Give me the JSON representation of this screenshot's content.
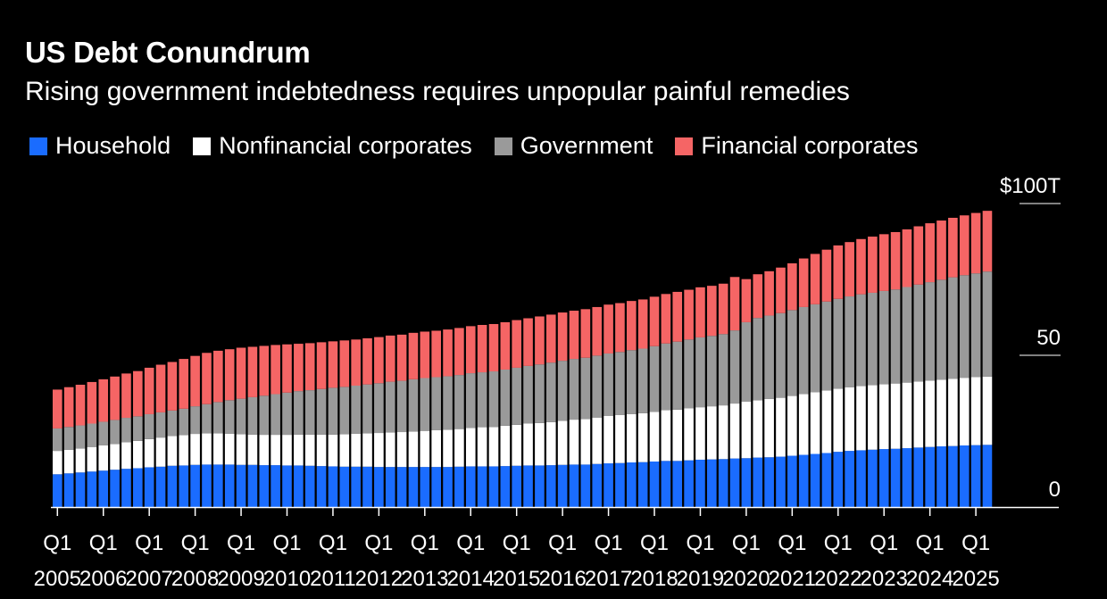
{
  "colors": {
    "household": "#1a6cff",
    "nonfinancial": "#ffffff",
    "government": "#9a9a9a",
    "financial": "#f56565",
    "background": "#000000"
  },
  "chart_data": {
    "type": "bar",
    "stacked": true,
    "title": "US Debt Conundrum",
    "subtitle": "Rising government indebtedness requires unpopular painful remedies",
    "legend_position": "top-left",
    "y_axis_position": "right",
    "ylim": [
      0,
      100
    ],
    "yticks": [
      {
        "value": 0,
        "label": "0"
      },
      {
        "value": 50,
        "label": "50"
      },
      {
        "value": 100,
        "label": "$100T"
      }
    ],
    "xtick_labels": [
      {
        "index": 0,
        "quarter": "Q1",
        "year": "2005"
      },
      {
        "index": 4,
        "quarter": "Q1",
        "year": "2006"
      },
      {
        "index": 8,
        "quarter": "Q1",
        "year": "2007"
      },
      {
        "index": 12,
        "quarter": "Q1",
        "year": "2008"
      },
      {
        "index": 16,
        "quarter": "Q1",
        "year": "2009"
      },
      {
        "index": 20,
        "quarter": "Q1",
        "year": "2010"
      },
      {
        "index": 24,
        "quarter": "Q1",
        "year": "2011"
      },
      {
        "index": 28,
        "quarter": "Q1",
        "year": "2012"
      },
      {
        "index": 32,
        "quarter": "Q1",
        "year": "2013"
      },
      {
        "index": 36,
        "quarter": "Q1",
        "year": "2014"
      },
      {
        "index": 40,
        "quarter": "Q1",
        "year": "2015"
      },
      {
        "index": 44,
        "quarter": "Q1",
        "year": "2016"
      },
      {
        "index": 48,
        "quarter": "Q1",
        "year": "2017"
      },
      {
        "index": 52,
        "quarter": "Q1",
        "year": "2018"
      },
      {
        "index": 56,
        "quarter": "Q1",
        "year": "2019"
      },
      {
        "index": 60,
        "quarter": "Q1",
        "year": "2020"
      },
      {
        "index": 64,
        "quarter": "Q1",
        "year": "2021"
      },
      {
        "index": 68,
        "quarter": "Q1",
        "year": "2022"
      },
      {
        "index": 72,
        "quarter": "Q1",
        "year": "2023"
      },
      {
        "index": 76,
        "quarter": "Q1",
        "year": "2024"
      },
      {
        "index": 80,
        "quarter": "Q1",
        "year": "2025"
      }
    ],
    "series": [
      {
        "name": "Household",
        "color_key": "household",
        "values": [
          10.8,
          11.1,
          11.4,
          11.7,
          12.0,
          12.3,
          12.6,
          12.8,
          13.1,
          13.3,
          13.6,
          13.7,
          13.9,
          14.0,
          14.0,
          14.0,
          13.9,
          13.9,
          13.8,
          13.8,
          13.7,
          13.7,
          13.6,
          13.5,
          13.4,
          13.3,
          13.3,
          13.3,
          13.2,
          13.2,
          13.2,
          13.2,
          13.2,
          13.2,
          13.2,
          13.3,
          13.4,
          13.4,
          13.4,
          13.5,
          13.6,
          13.7,
          13.7,
          13.8,
          13.9,
          14.0,
          14.0,
          14.2,
          14.4,
          14.5,
          14.7,
          14.8,
          15.0,
          15.2,
          15.2,
          15.4,
          15.6,
          15.7,
          15.8,
          16.0,
          16.1,
          16.3,
          16.4,
          16.6,
          16.9,
          17.2,
          17.5,
          17.8,
          18.2,
          18.5,
          18.7,
          18.9,
          19.1,
          19.2,
          19.4,
          19.6,
          19.8,
          20.0,
          20.1,
          20.3,
          20.4,
          20.5
        ]
      },
      {
        "name": "Nonfinancial corporates",
        "color_key": "nonfinancial",
        "values": [
          7.7,
          7.8,
          7.9,
          8.1,
          8.3,
          8.5,
          8.8,
          9.0,
          9.3,
          9.6,
          9.8,
          10.0,
          10.2,
          10.3,
          10.3,
          10.2,
          10.1,
          10.0,
          10.0,
          10.0,
          10.1,
          10.2,
          10.3,
          10.4,
          10.5,
          10.7,
          10.9,
          11.0,
          11.2,
          11.4,
          11.5,
          11.7,
          11.9,
          12.1,
          12.3,
          12.4,
          12.7,
          12.9,
          13.0,
          13.3,
          13.5,
          13.8,
          14.0,
          14.2,
          14.5,
          14.8,
          15.0,
          15.3,
          15.6,
          15.8,
          15.9,
          16.1,
          16.4,
          16.7,
          16.9,
          17.1,
          17.3,
          17.5,
          17.7,
          18.1,
          18.6,
          18.9,
          19.2,
          19.4,
          19.7,
          20.0,
          20.3,
          20.6,
          20.8,
          21.0,
          21.2,
          21.3,
          21.4,
          21.5,
          21.6,
          21.8,
          21.9,
          22.0,
          22.2,
          22.3,
          22.4,
          22.5
        ]
      },
      {
        "name": "Government",
        "color_key": "government",
        "values": [
          7.4,
          7.5,
          7.6,
          7.7,
          7.8,
          7.9,
          8.0,
          8.1,
          8.2,
          8.3,
          8.4,
          8.7,
          9.1,
          9.6,
          10.3,
          11.0,
          11.7,
          12.3,
          12.9,
          13.4,
          13.9,
          14.3,
          14.6,
          15.0,
          15.4,
          15.6,
          15.8,
          16.1,
          16.4,
          16.7,
          16.9,
          17.2,
          17.4,
          17.5,
          17.6,
          17.8,
          18.0,
          18.1,
          18.3,
          18.5,
          18.8,
          19.0,
          19.3,
          19.6,
          19.8,
          20.0,
          20.2,
          20.4,
          20.6,
          20.8,
          21.1,
          21.3,
          21.6,
          22.0,
          22.4,
          22.7,
          23.0,
          23.2,
          23.5,
          24.1,
          26.2,
          27.1,
          27.5,
          27.9,
          28.3,
          28.7,
          29.0,
          29.3,
          29.6,
          29.9,
          30.2,
          30.4,
          30.7,
          31.0,
          31.5,
          31.9,
          32.4,
          32.9,
          33.4,
          33.8,
          34.2,
          34.6
        ]
      },
      {
        "name": "Financial corporates",
        "color_key": "financial",
        "values": [
          12.8,
          13.1,
          13.4,
          13.7,
          14.0,
          14.3,
          14.6,
          14.9,
          15.3,
          15.7,
          16.0,
          16.4,
          16.6,
          16.9,
          16.9,
          16.8,
          16.8,
          16.6,
          16.4,
          16.2,
          15.9,
          15.6,
          15.5,
          15.4,
          15.3,
          15.3,
          15.2,
          15.2,
          15.2,
          15.2,
          15.2,
          15.3,
          15.3,
          15.3,
          15.4,
          15.5,
          15.5,
          15.6,
          15.6,
          15.6,
          15.7,
          15.7,
          15.8,
          15.8,
          15.9,
          15.9,
          16.0,
          16.0,
          16.1,
          16.1,
          16.2,
          16.2,
          16.3,
          16.3,
          16.4,
          16.4,
          16.5,
          16.5,
          16.6,
          17.6,
          14.2,
          14.4,
          14.6,
          15.0,
          15.4,
          16.0,
          16.6,
          17.1,
          17.6,
          17.9,
          18.2,
          18.5,
          18.7,
          18.9,
          19.0,
          19.2,
          19.4,
          19.5,
          19.6,
          19.7,
          19.9,
          20.0
        ]
      }
    ]
  }
}
